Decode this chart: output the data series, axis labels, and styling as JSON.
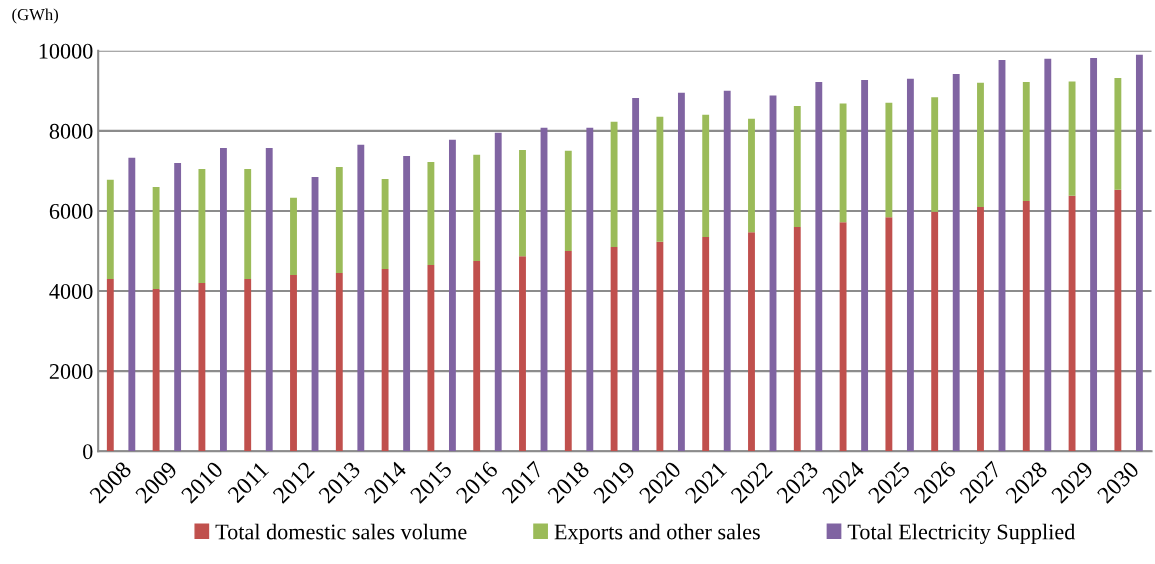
{
  "chart_data": [
    {
      "type": "bar",
      "ylabel": "(GWh)",
      "stacked": true,
      "categories": [
        "2008",
        "2009",
        "2010",
        "2011",
        "2012",
        "2013",
        "2014",
        "2015",
        "2016",
        "2017",
        "2018",
        "2019",
        "2020",
        "2021",
        "2022",
        "2023",
        "2024",
        "2025",
        "2026",
        "2027",
        "2028",
        "2029",
        "2030"
      ],
      "series": [
        {
          "name": "Total domestic sales volume",
          "color": "#c0504d",
          "values": [
            4300,
            4050,
            4200,
            4300,
            4400,
            4450,
            4550,
            4650,
            4750,
            4870,
            5000,
            5100,
            5230,
            5350,
            5470,
            5600,
            5720,
            5840,
            5980,
            6100,
            6250,
            6380,
            6530
          ]
        },
        {
          "name": "Exports and other sales",
          "color": "#9bbb59",
          "values": [
            2480,
            2550,
            2850,
            2750,
            1930,
            2650,
            2250,
            2570,
            2650,
            2650,
            2500,
            3130,
            3120,
            3050,
            2830,
            3020,
            2960,
            2860,
            2860,
            3100,
            2970,
            2850,
            2790
          ]
        }
      ],
      "ylim": [
        0,
        10000
      ],
      "yticks": [
        0,
        2000,
        4000,
        6000,
        8000,
        10000
      ],
      "grid": "y",
      "legend": "bottom"
    },
    {
      "type": "bar",
      "tick_labels": false,
      "categories": [
        "2008",
        "2009",
        "2010",
        "2011",
        "2012",
        "2013",
        "2014",
        "2015",
        "2016",
        "2017",
        "2018",
        "2019",
        "2020",
        "2021",
        "2022",
        "2023",
        "2024",
        "2025",
        "2026",
        "2027",
        "2028",
        "2029",
        "2030"
      ],
      "series": [
        {
          "name": "Total Electricity Supplied",
          "color": "#8064a2",
          "values": [
            7330,
            7200,
            7570,
            7570,
            6850,
            7650,
            7370,
            7780,
            7950,
            8080,
            8080,
            8820,
            8950,
            9000,
            8880,
            9220,
            9270,
            9300,
            9420,
            9770,
            9800,
            9820,
            9900
          ]
        }
      ],
      "ylim": [
        0,
        10000
      ],
      "yticks": [
        0,
        2000,
        4000,
        6000,
        8000,
        10000
      ],
      "legend": "bottom"
    }
  ]
}
